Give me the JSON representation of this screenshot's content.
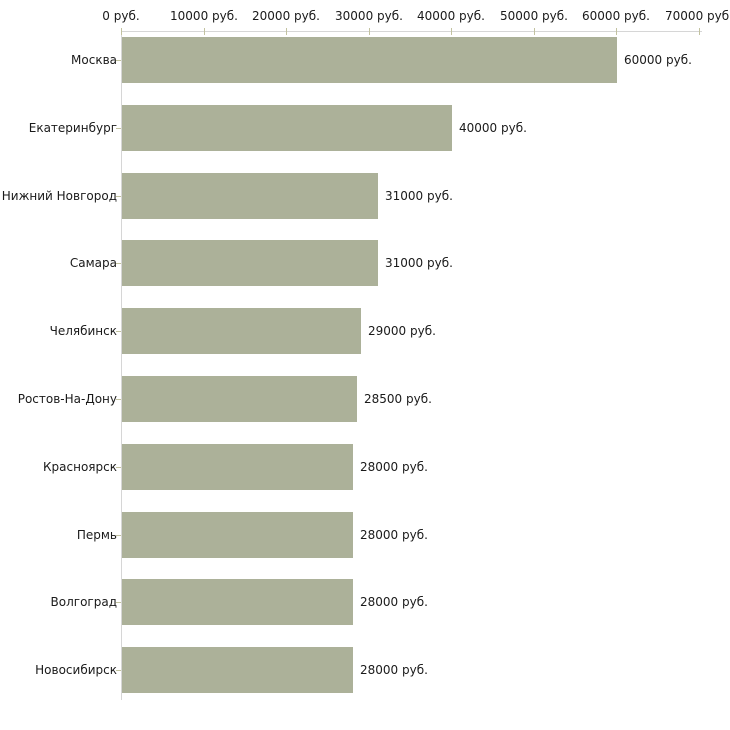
{
  "colors": {
    "background": "#ffffff",
    "bar_fill": "#acb199",
    "axis_line": "#d6d6d6",
    "tick_mark": "#c2c2a0",
    "label_text": "#1a1a1a"
  },
  "chart_data": {
    "type": "bar",
    "orientation": "horizontal",
    "title": "",
    "xlabel": "",
    "ylabel": "",
    "unit_suffix": " руб.",
    "xlim": [
      0,
      70000
    ],
    "x_tick_step": 10000,
    "grid": false,
    "legend": "none",
    "x_tick_labels": [
      "0 руб.",
      "10000 руб.",
      "20000 руб.",
      "30000 руб.",
      "40000 руб.",
      "50000 руб.",
      "60000 руб.",
      "70000 руб."
    ],
    "categories": [
      "Москва",
      "Екатеринбург",
      "Нижний Новгород",
      "Самара",
      "Челябинск",
      "Ростов-На-Дону",
      "Красноярск",
      "Пермь",
      "Волгоград",
      "Новосибирск"
    ],
    "values": [
      60000,
      40000,
      31000,
      31000,
      29000,
      28500,
      28000,
      28000,
      28000,
      28000
    ],
    "value_labels": [
      "60000 руб.",
      "40000 руб.",
      "31000 руб.",
      "31000 руб.",
      "29000 руб.",
      "28500 руб.",
      "28000 руб.",
      "28000 руб.",
      "28000 руб.",
      "28000 руб."
    ]
  }
}
